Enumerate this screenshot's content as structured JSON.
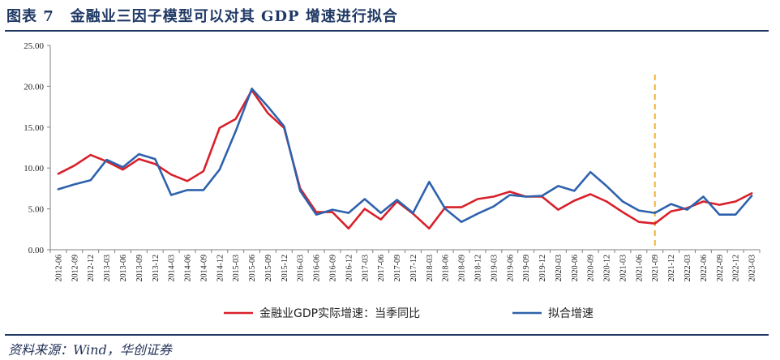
{
  "header": {
    "figure_label": "图表 7",
    "title": "金融业三因子模型可以对其 GDP 增速进行拟合"
  },
  "footer": {
    "source": "资料来源：Wind，华创证券"
  },
  "chart_data": {
    "type": "line",
    "title": "金融业三因子模型可以对其 GDP 增速进行拟合",
    "xlabel": "",
    "ylabel": "",
    "ylim": [
      0,
      25
    ],
    "yticks": [
      "0.00",
      "5.00",
      "10.00",
      "15.00",
      "20.00",
      "25.00"
    ],
    "yticks_values": [
      0,
      5,
      10,
      15,
      20,
      25
    ],
    "categories": [
      "2012-06",
      "2012-09",
      "2012-12",
      "2013-03",
      "2013-06",
      "2013-09",
      "2013-12",
      "2014-03",
      "2014-06",
      "2014-09",
      "2014-12",
      "2015-03",
      "2015-06",
      "2015-09",
      "2015-12",
      "2016-03",
      "2016-06",
      "2016-09",
      "2016-12",
      "2017-03",
      "2017-06",
      "2017-09",
      "2017-12",
      "2018-03",
      "2018-06",
      "2018-09",
      "2018-12",
      "2019-03",
      "2019-06",
      "2019-09",
      "2019-12",
      "2020-03",
      "2020-06",
      "2020-09",
      "2020-12",
      "2021-03",
      "2021-06",
      "2021-09",
      "2021-12",
      "2022-03",
      "2022-06",
      "2022-09",
      "2022-12",
      "2023-03"
    ],
    "series": [
      {
        "name": "金融业GDP实际增速：当季同比",
        "color": "#d9202a",
        "values": [
          9.3,
          10.3,
          11.6,
          10.8,
          9.8,
          11.1,
          10.5,
          9.2,
          8.4,
          9.6,
          14.9,
          16.0,
          19.5,
          16.7,
          14.9,
          7.5,
          4.6,
          4.6,
          2.6,
          5.0,
          3.7,
          5.9,
          4.4,
          2.6,
          5.2,
          5.2,
          6.2,
          6.5,
          7.1,
          6.5,
          6.5,
          4.9,
          6.0,
          6.8,
          5.9,
          4.6,
          3.4,
          3.2,
          4.7,
          5.1,
          5.9,
          5.5,
          5.9,
          6.9
        ]
      },
      {
        "name": "拟合增速",
        "color": "#2e62ad",
        "values": [
          7.4,
          8.0,
          8.5,
          11.0,
          10.1,
          11.7,
          11.1,
          6.7,
          7.3,
          7.3,
          9.8,
          14.5,
          19.7,
          17.5,
          15.1,
          7.2,
          4.3,
          4.9,
          4.5,
          6.2,
          4.5,
          6.1,
          4.5,
          8.3,
          5.0,
          3.4,
          4.4,
          5.3,
          6.7,
          6.5,
          6.6,
          7.8,
          7.2,
          9.5,
          7.8,
          5.9,
          4.8,
          4.5,
          5.6,
          4.9,
          6.5,
          4.3,
          4.3,
          6.6
        ]
      }
    ],
    "marker_line": {
      "category": "2021-09",
      "color": "#f2b134",
      "style": "dashed"
    },
    "legend_position": "bottom-center",
    "grid": false
  }
}
